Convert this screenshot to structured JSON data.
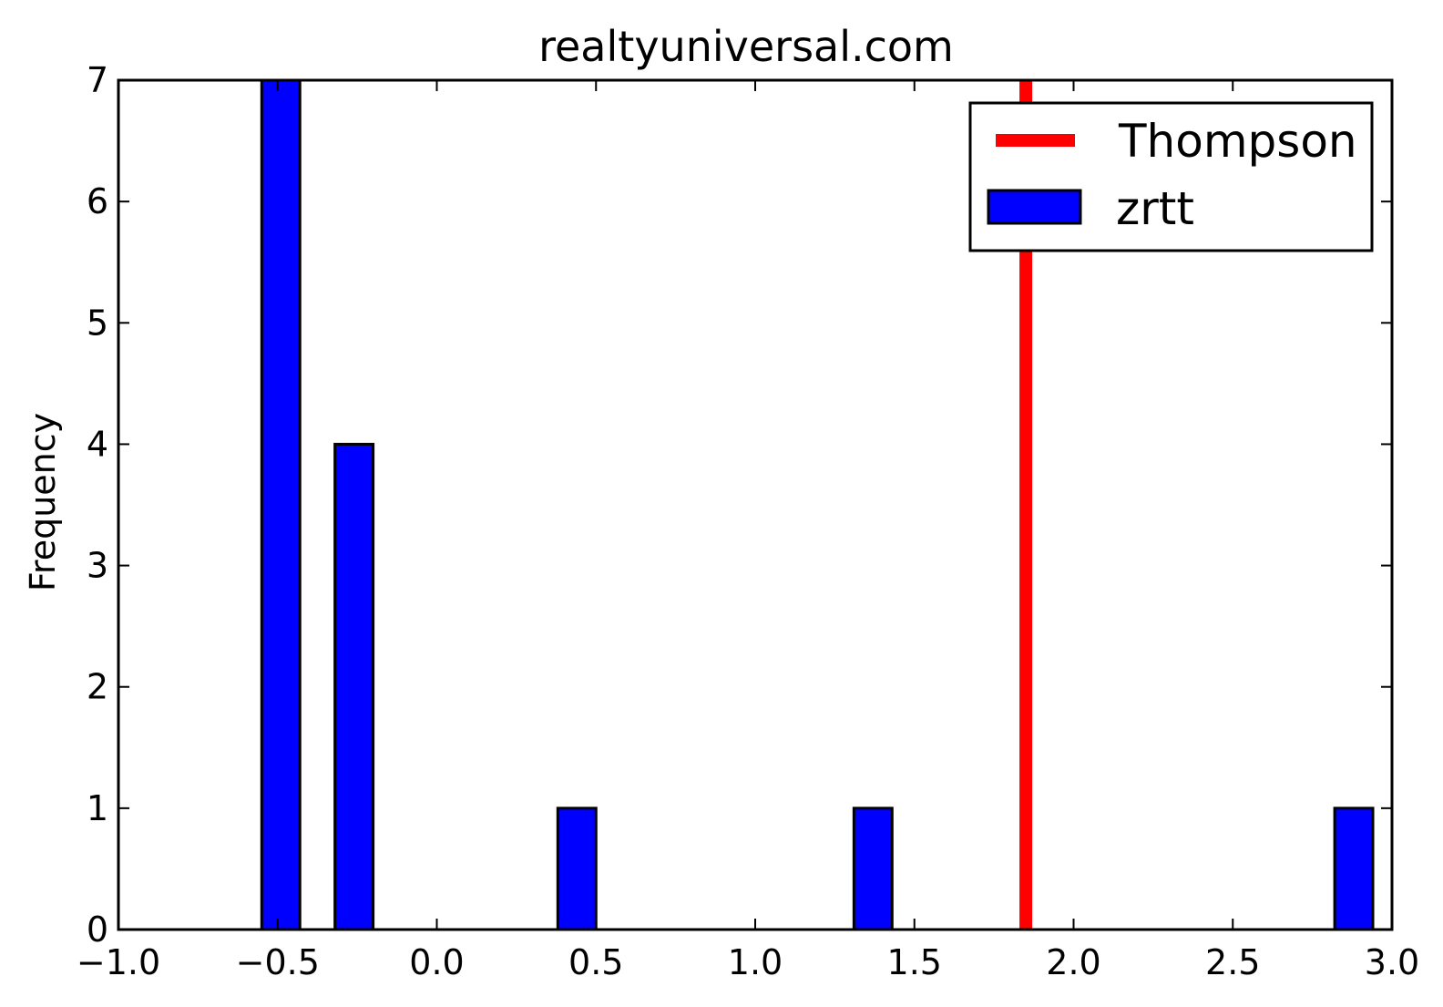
{
  "chart_data": {
    "type": "bar",
    "title": "realtyuniversal.com",
    "xlabel": "",
    "ylabel": "Frequency",
    "xlim": [
      -1.0,
      3.0
    ],
    "ylim": [
      0,
      7
    ],
    "x_ticks": [
      -1.0,
      -0.5,
      0.0,
      0.5,
      1.0,
      1.5,
      2.0,
      2.5,
      3.0
    ],
    "x_tick_labels": [
      "−1.0",
      "−0.5",
      "0.0",
      "0.5",
      "1.0",
      "1.5",
      "2.0",
      "2.5",
      "3.0"
    ],
    "y_ticks": [
      0,
      1,
      2,
      3,
      4,
      5,
      6,
      7
    ],
    "y_tick_labels": [
      "0",
      "1",
      "2",
      "3",
      "4",
      "5",
      "6",
      "7"
    ],
    "grid": false,
    "legend_position": "top-right",
    "series": [
      {
        "name": "zrtt",
        "kind": "histogram",
        "color": "#0000ff",
        "bins": [
          {
            "x0": -0.55,
            "x1": -0.43,
            "count": 7
          },
          {
            "x0": -0.32,
            "x1": -0.2,
            "count": 4
          },
          {
            "x0": 0.38,
            "x1": 0.5,
            "count": 1
          },
          {
            "x0": 1.31,
            "x1": 1.43,
            "count": 1
          },
          {
            "x0": 2.82,
            "x1": 2.94,
            "count": 1
          }
        ]
      }
    ],
    "vlines": [
      {
        "name": "Thompson",
        "x": 1.85,
        "color": "#ff0000"
      }
    ]
  }
}
